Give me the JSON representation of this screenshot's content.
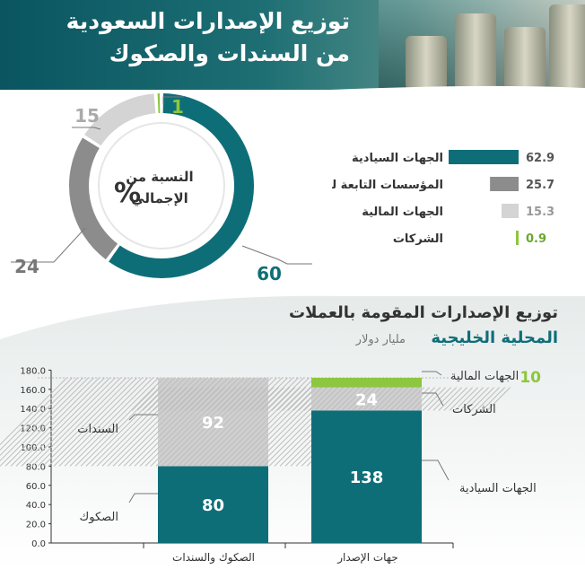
{
  "header": {
    "title_line1": "توزيع الإصدارات السعودية",
    "title_line2": "من السندات والصكوك"
  },
  "donut": {
    "center_line1": "النسبة من",
    "center_line2": "الإجمالي",
    "center_symbol": "%",
    "segments": [
      {
        "value": 60,
        "label": "60",
        "color": "#0e6e78"
      },
      {
        "value": 24,
        "label": "24",
        "color": "#8c8c8c"
      },
      {
        "value": 15,
        "label": "15",
        "color": "#d4d4d4"
      },
      {
        "value": 1,
        "label": "1",
        "color": "#8dc63f"
      }
    ]
  },
  "hbars": [
    {
      "label": "الجهات السيادية",
      "value": 62.9,
      "value_text": "62.9",
      "color": "#0e6e78"
    },
    {
      "label": "المؤسسات التابعة للحكومة",
      "value": 25.7,
      "value_text": "25.7",
      "color": "#8c8c8c"
    },
    {
      "label": "الجهات المالية",
      "value": 15.3,
      "value_text": "15.3",
      "color": "#d4d4d4"
    },
    {
      "label": "الشركات",
      "value": 0.9,
      "value_text": "0.9",
      "color": "#8dc63f"
    }
  ],
  "section2": {
    "title_line1": "توزيع الإصدارات المقومة بالعملات",
    "title_line2": "المحلية الخليجية",
    "unit": "مليار دولار"
  },
  "chart_data": {
    "type": "bar",
    "stacked": true,
    "categories": [
      "الصكوك والسندات",
      "جهات الإصدار"
    ],
    "ylim": [
      0,
      180
    ],
    "yticks": [
      "0.0",
      "20.0",
      "40.0",
      "60.0",
      "80.0",
      "100.0",
      "120.0",
      "140.0",
      "160.0",
      "180.0"
    ],
    "left_stack": [
      {
        "name": "الصكوك",
        "value": 80,
        "label": "80",
        "color": "#0e6e78"
      },
      {
        "name": "السندات",
        "value": 92,
        "label": "92",
        "color": "#cfcfcf"
      }
    ],
    "right_stack": [
      {
        "name": "الجهات السيادية",
        "value": 138,
        "label": "138",
        "color": "#0e6e78"
      },
      {
        "name": "الشركات",
        "value": 24,
        "label": "24",
        "color": "#cfcfcf"
      },
      {
        "name": "الجهات المالية",
        "value": 10,
        "label": "10",
        "color": "#8dc63f"
      }
    ]
  }
}
